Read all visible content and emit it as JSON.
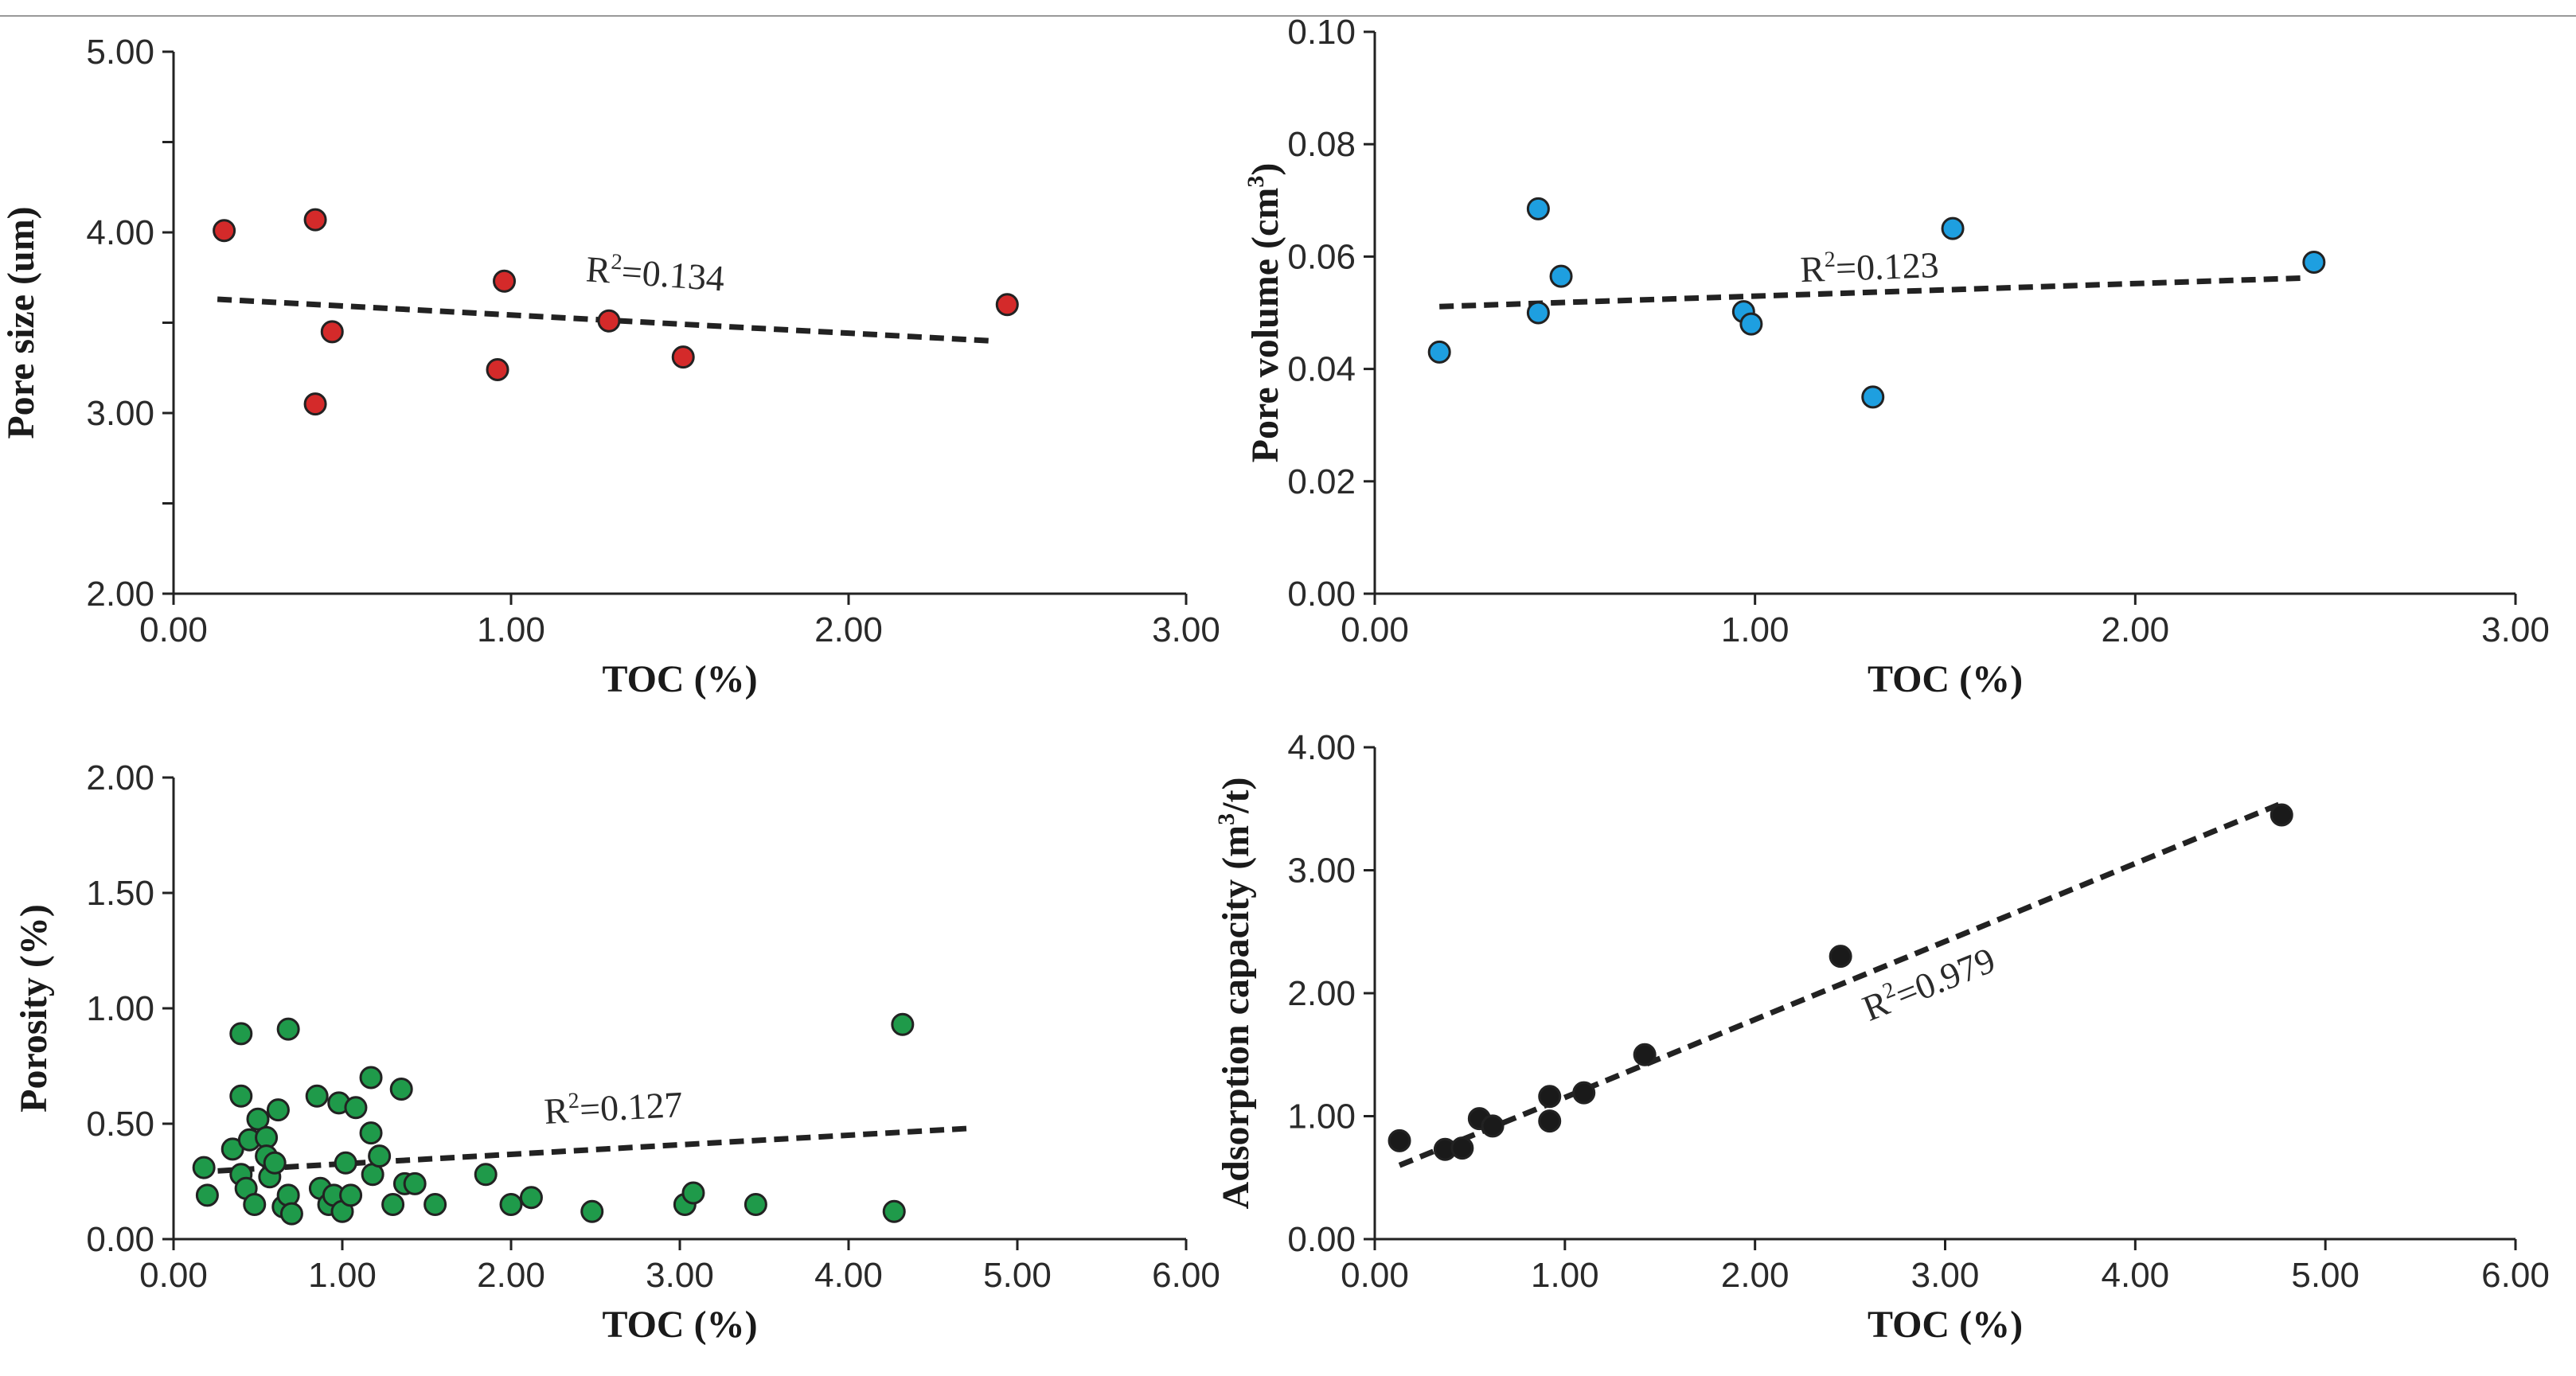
{
  "chart_data": [
    {
      "type": "scatter",
      "xlabel": "TOC (%)",
      "ylabel": "Pore size (um)",
      "xlim": [
        0,
        3
      ],
      "ylim": [
        2,
        5
      ],
      "xticks": [
        "0.00",
        "1.00",
        "2.00",
        "3.00"
      ],
      "yticks": [
        "2.00",
        "3.00",
        "4.00",
        "5.00"
      ],
      "ytick_values": [
        2,
        3,
        4,
        5
      ],
      "ytick_minor": [
        2.5,
        3.5,
        4.5
      ],
      "point_color": "#d42a2a",
      "points": [
        [
          0.15,
          4.01
        ],
        [
          0.42,
          4.07
        ],
        [
          0.47,
          3.45
        ],
        [
          0.42,
          3.05
        ],
        [
          0.96,
          3.24
        ],
        [
          0.98,
          3.73
        ],
        [
          1.29,
          3.51
        ],
        [
          1.51,
          3.31
        ],
        [
          2.47,
          3.6
        ]
      ],
      "trendline": [
        [
          0.13,
          3.63
        ],
        [
          2.42,
          3.4
        ]
      ],
      "r2": {
        "base": "R",
        "sup": "2",
        "value": "=0.134",
        "x": 1.22,
        "y": 3.73,
        "rotate": 4
      }
    },
    {
      "type": "scatter",
      "xlabel": "TOC (%)",
      "ylabel": "Pore volume (cm",
      "ylabel_sup": "3",
      "ylabel_end": ")",
      "xlim": [
        0,
        3
      ],
      "ylim": [
        0,
        0.1
      ],
      "xticks": [
        "0.00",
        "1.00",
        "2.00",
        "3.00"
      ],
      "yticks": [
        "0.00",
        "0.02",
        "0.04",
        "0.06",
        "0.08",
        "0.10"
      ],
      "ytick_values": [
        0,
        0.02,
        0.04,
        0.06,
        0.08,
        0.1
      ],
      "ytick_minor": [],
      "point_color": "#1e9fe0",
      "points": [
        [
          0.17,
          0.043
        ],
        [
          0.43,
          0.0685
        ],
        [
          0.43,
          0.05
        ],
        [
          0.49,
          0.0565
        ],
        [
          0.97,
          0.0502
        ],
        [
          0.99,
          0.048
        ],
        [
          1.31,
          0.035
        ],
        [
          1.52,
          0.065
        ],
        [
          2.47,
          0.059
        ]
      ],
      "trendline": [
        [
          0.17,
          0.0511
        ],
        [
          2.45,
          0.0562
        ]
      ],
      "r2": {
        "base": "R",
        "sup": "2",
        "value": "=0.123",
        "x": 1.12,
        "y": 0.0555,
        "rotate": -2
      }
    },
    {
      "type": "scatter",
      "xlabel": "TOC (%)",
      "ylabel": "Porosity (%)",
      "xlim": [
        0,
        6
      ],
      "ylim": [
        0,
        2
      ],
      "xticks": [
        "0.00",
        "1.00",
        "2.00",
        "3.00",
        "4.00",
        "5.00",
        "6.00"
      ],
      "yticks": [
        "0.00",
        "0.50",
        "1.00",
        "1.50",
        "2.00"
      ],
      "ytick_values": [
        0,
        0.5,
        1,
        1.5,
        2
      ],
      "ytick_minor": [],
      "point_color": "#1f9a4a",
      "points": [
        [
          0.18,
          0.31
        ],
        [
          0.2,
          0.19
        ],
        [
          0.35,
          0.39
        ],
        [
          0.4,
          0.89
        ],
        [
          0.4,
          0.62
        ],
        [
          0.4,
          0.28
        ],
        [
          0.43,
          0.22
        ],
        [
          0.45,
          0.43
        ],
        [
          0.48,
          0.15
        ],
        [
          0.5,
          0.52
        ],
        [
          0.55,
          0.44
        ],
        [
          0.55,
          0.36
        ],
        [
          0.57,
          0.27
        ],
        [
          0.6,
          0.33
        ],
        [
          0.62,
          0.56
        ],
        [
          0.65,
          0.14
        ],
        [
          0.68,
          0.91
        ],
        [
          0.68,
          0.19
        ],
        [
          0.7,
          0.11
        ],
        [
          0.85,
          0.62
        ],
        [
          0.87,
          0.22
        ],
        [
          0.92,
          0.15
        ],
        [
          0.95,
          0.19
        ],
        [
          0.98,
          0.59
        ],
        [
          1.0,
          0.12
        ],
        [
          1.02,
          0.33
        ],
        [
          1.05,
          0.19
        ],
        [
          1.08,
          0.57
        ],
        [
          1.17,
          0.7
        ],
        [
          1.17,
          0.46
        ],
        [
          1.18,
          0.28
        ],
        [
          1.22,
          0.36
        ],
        [
          1.3,
          0.15
        ],
        [
          1.35,
          0.65
        ],
        [
          1.37,
          0.24
        ],
        [
          1.43,
          0.24
        ],
        [
          1.55,
          0.15
        ],
        [
          1.85,
          0.28
        ],
        [
          2.0,
          0.15
        ],
        [
          2.12,
          0.18
        ],
        [
          2.48,
          0.12
        ],
        [
          3.03,
          0.15
        ],
        [
          3.08,
          0.2
        ],
        [
          3.45,
          0.15
        ],
        [
          4.27,
          0.12
        ],
        [
          4.32,
          0.93
        ]
      ],
      "trendline": [
        [
          0.13,
          0.29
        ],
        [
          4.72,
          0.48
        ]
      ],
      "r2": {
        "base": "R",
        "sup": "2",
        "value": "=0.127",
        "x": 2.2,
        "y": 0.5,
        "rotate": -3
      }
    },
    {
      "type": "scatter",
      "xlabel": "TOC (%)",
      "ylabel": "Adsorption capacity (m",
      "ylabel_sup": "3",
      "ylabel_end": "/t)",
      "xlim": [
        0,
        6
      ],
      "ylim": [
        0,
        4
      ],
      "xticks": [
        "0.00",
        "1.00",
        "2.00",
        "3.00",
        "4.00",
        "5.00",
        "6.00"
      ],
      "yticks": [
        "0.00",
        "1.00",
        "2.00",
        "3.00",
        "4.00"
      ],
      "ytick_values": [
        0,
        1,
        2,
        3,
        4
      ],
      "ytick_minor": [],
      "point_color": "#1a1a1a",
      "points": [
        [
          0.13,
          0.8
        ],
        [
          0.37,
          0.73
        ],
        [
          0.46,
          0.74
        ],
        [
          0.55,
          0.98
        ],
        [
          0.62,
          0.92
        ],
        [
          0.92,
          1.16
        ],
        [
          0.92,
          0.96
        ],
        [
          1.1,
          1.19
        ],
        [
          1.42,
          1.5
        ],
        [
          2.45,
          2.3
        ],
        [
          4.77,
          3.45
        ]
      ],
      "trendline": [
        [
          0.13,
          0.6
        ],
        [
          4.78,
          3.55
        ]
      ],
      "r2": {
        "base": "R",
        "sup": "2",
        "value": "=0.979",
        "x": 2.6,
        "y": 1.77,
        "rotate": -22
      }
    }
  ]
}
